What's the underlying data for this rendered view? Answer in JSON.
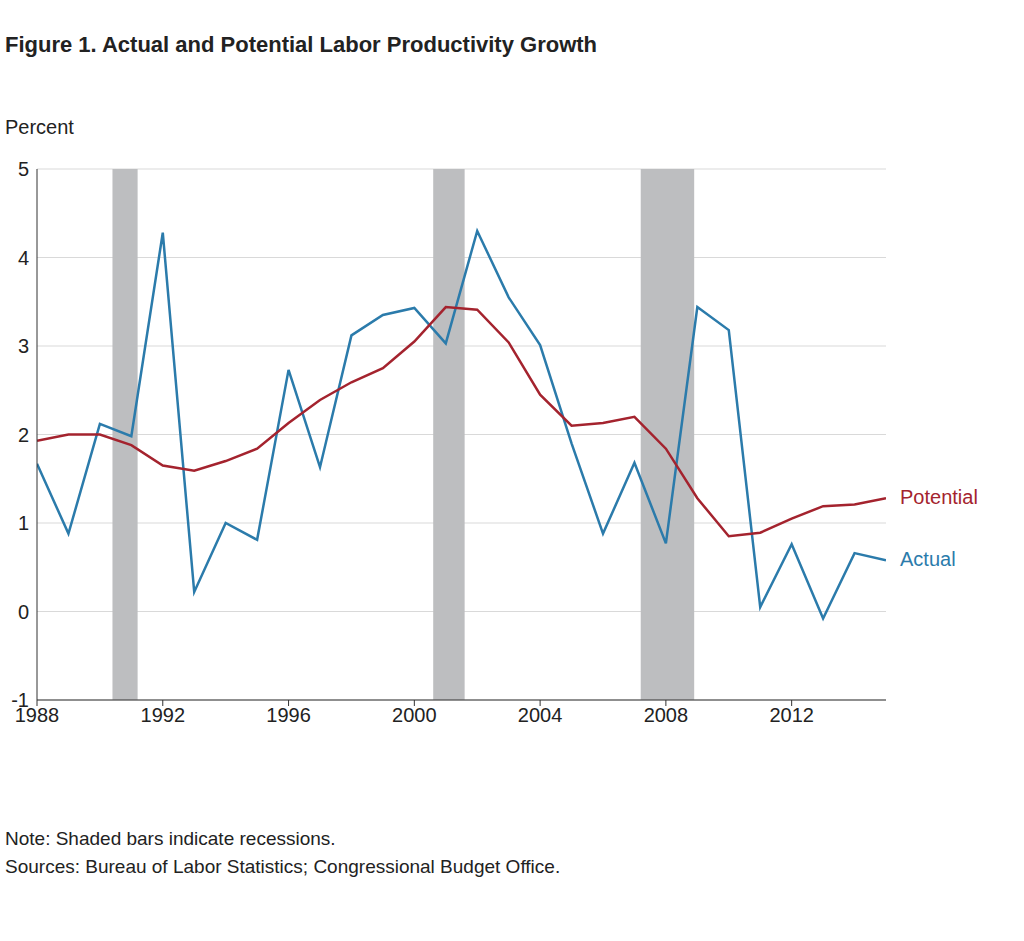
{
  "chart_data": {
    "type": "line",
    "title": "Figure 1. Actual and Potential Labor Productivity Growth",
    "y_label": "Percent",
    "note": "Note: Shaded bars indicate recessions.",
    "sources": "Sources: Bureau of Labor Statistics; Congressional Budget Office.",
    "x": [
      1988,
      1989,
      1990,
      1991,
      1992,
      1993,
      1994,
      1995,
      1996,
      1997,
      1998,
      1999,
      2000,
      2001,
      2002,
      2003,
      2004,
      2005,
      2006,
      2007,
      2008,
      2009,
      2010,
      2011,
      2012,
      2013,
      2014,
      2015
    ],
    "series": [
      {
        "name": "Actual",
        "color": "#2b7bab",
        "values": [
          1.67,
          0.88,
          2.12,
          1.98,
          4.28,
          0.22,
          1.0,
          0.81,
          2.73,
          1.63,
          3.12,
          3.35,
          3.43,
          3.03,
          4.3,
          3.55,
          3.01,
          1.9,
          0.88,
          1.68,
          0.77,
          3.44,
          3.18,
          0.05,
          0.76,
          -0.08,
          0.66,
          0.58
        ]
      },
      {
        "name": "Potential",
        "color": "#a4232e",
        "values": [
          1.93,
          2.0,
          2.0,
          1.88,
          1.65,
          1.59,
          1.7,
          1.84,
          2.13,
          2.39,
          2.59,
          2.75,
          3.05,
          3.44,
          3.41,
          3.04,
          2.45,
          2.1,
          2.13,
          2.2,
          1.84,
          1.28,
          0.85,
          0.89,
          1.05,
          1.19,
          1.21,
          1.28
        ]
      }
    ],
    "recessions": [
      [
        1990.4,
        1991.2
      ],
      [
        2000.6,
        2001.6
      ],
      [
        2007.2,
        2008.9
      ]
    ],
    "xlim": [
      1988,
      2015
    ],
    "xticks": [
      1988,
      1992,
      1996,
      2000,
      2004,
      2008,
      2012
    ],
    "ylim": [
      -1,
      5
    ],
    "yticks": [
      -1,
      0,
      1,
      2,
      3,
      4,
      5
    ],
    "grid": true
  }
}
